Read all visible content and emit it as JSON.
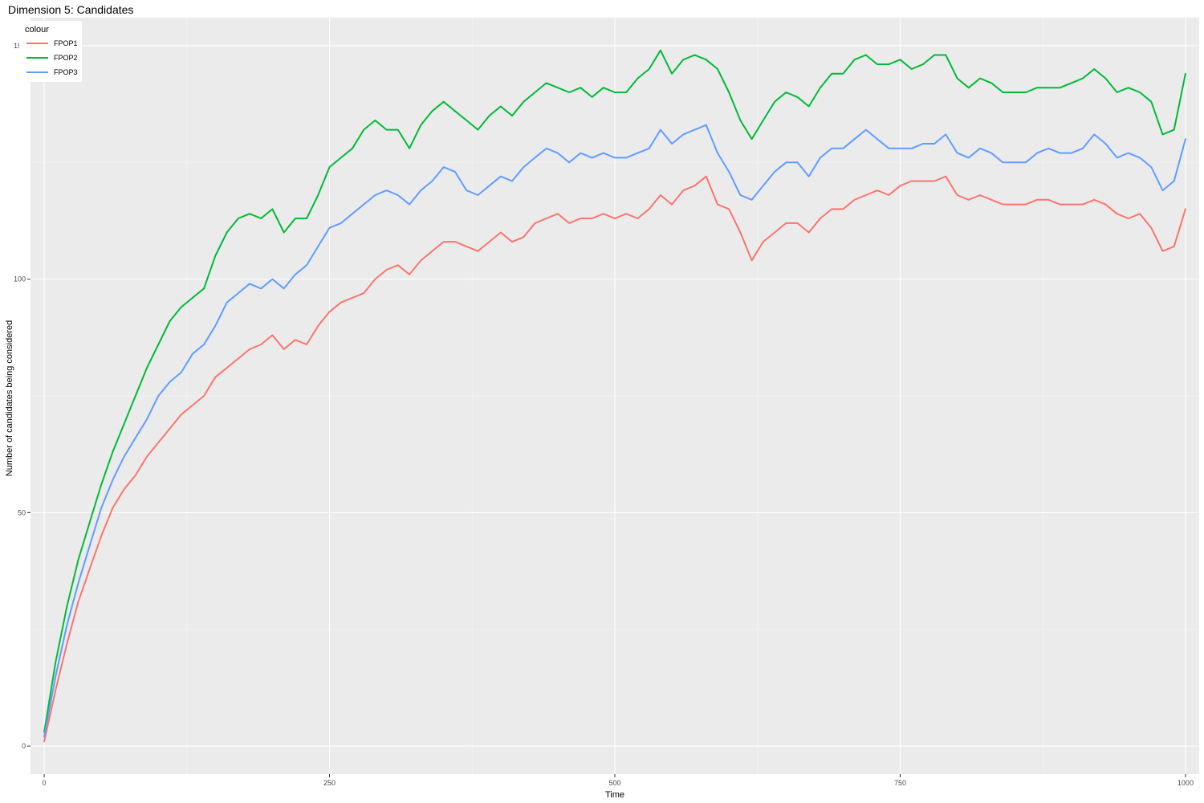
{
  "chart_data": {
    "type": "line",
    "title": "Dimension 5: Candidates",
    "xlabel": "Time",
    "ylabel": "Number of candidates being considered",
    "xlim": [
      -12,
      1012
    ],
    "ylim": [
      -6,
      156
    ],
    "x_ticks": [
      0,
      250,
      500,
      750,
      1000
    ],
    "x_tick_labels": [
      "0",
      "250",
      "500",
      "750",
      "1000"
    ],
    "y_ticks": [
      0,
      50,
      100,
      150
    ],
    "y_tick_labels": [
      "0",
      "50",
      "100",
      "150"
    ],
    "grid": true,
    "legend": {
      "title": "colour",
      "position": "top-left"
    },
    "x": [
      0,
      10,
      20,
      30,
      40,
      50,
      60,
      70,
      80,
      90,
      100,
      110,
      120,
      130,
      140,
      150,
      160,
      170,
      180,
      190,
      200,
      210,
      220,
      230,
      240,
      250,
      260,
      270,
      280,
      290,
      300,
      310,
      320,
      330,
      340,
      350,
      360,
      370,
      380,
      390,
      400,
      410,
      420,
      430,
      440,
      450,
      460,
      470,
      480,
      490,
      500,
      510,
      520,
      530,
      540,
      550,
      560,
      570,
      580,
      590,
      600,
      610,
      620,
      630,
      640,
      650,
      660,
      670,
      680,
      690,
      700,
      710,
      720,
      730,
      740,
      750,
      760,
      770,
      780,
      790,
      800,
      810,
      820,
      830,
      840,
      850,
      860,
      870,
      880,
      890,
      900,
      910,
      920,
      930,
      940,
      950,
      960,
      970,
      980,
      990,
      1000
    ],
    "series": [
      {
        "name": "FPOP1",
        "color": "#F8766D",
        "values": [
          1,
          12,
          22,
          31,
          38,
          45,
          51,
          55,
          58,
          62,
          65,
          68,
          71,
          73,
          75,
          79,
          81,
          83,
          85,
          86,
          88,
          85,
          87,
          86,
          90,
          93,
          95,
          96,
          97,
          100,
          102,
          103,
          101,
          104,
          106,
          108,
          108,
          107,
          106,
          108,
          110,
          108,
          109,
          112,
          113,
          114,
          112,
          113,
          113,
          114,
          113,
          114,
          113,
          115,
          118,
          116,
          119,
          120,
          122,
          116,
          115,
          110,
          104,
          108,
          110,
          112,
          112,
          110,
          113,
          115,
          115,
          117,
          118,
          119,
          118,
          120,
          121,
          121,
          121,
          122,
          118,
          117,
          118,
          117,
          116,
          116,
          116,
          117,
          117,
          116,
          116,
          116,
          117,
          116,
          114,
          113,
          114,
          111,
          106,
          107,
          115
        ]
      },
      {
        "name": "FPOP2",
        "color": "#00BA38",
        "values": [
          3,
          18,
          30,
          40,
          48,
          56,
          63,
          69,
          75,
          81,
          86,
          91,
          94,
          96,
          98,
          105,
          110,
          113,
          114,
          113,
          115,
          110,
          113,
          113,
          118,
          124,
          126,
          128,
          132,
          134,
          132,
          132,
          128,
          133,
          136,
          138,
          136,
          134,
          132,
          135,
          137,
          135,
          138,
          140,
          142,
          141,
          140,
          141,
          139,
          141,
          140,
          140,
          143,
          145,
          149,
          144,
          147,
          148,
          147,
          145,
          140,
          134,
          130,
          134,
          138,
          140,
          139,
          137,
          141,
          144,
          144,
          147,
          148,
          146,
          146,
          147,
          145,
          146,
          148,
          148,
          143,
          141,
          143,
          142,
          140,
          140,
          140,
          141,
          141,
          141,
          142,
          143,
          145,
          143,
          140,
          141,
          140,
          138,
          131,
          132,
          144
        ]
      },
      {
        "name": "FPOP3",
        "color": "#619CFF",
        "values": [
          2,
          15,
          26,
          35,
          43,
          51,
          57,
          62,
          66,
          70,
          75,
          78,
          80,
          84,
          86,
          90,
          95,
          97,
          99,
          98,
          100,
          98,
          101,
          103,
          107,
          111,
          112,
          114,
          116,
          118,
          119,
          118,
          116,
          119,
          121,
          124,
          123,
          119,
          118,
          120,
          122,
          121,
          124,
          126,
          128,
          127,
          125,
          127,
          126,
          127,
          126,
          126,
          127,
          128,
          132,
          129,
          131,
          132,
          133,
          127,
          123,
          118,
          117,
          120,
          123,
          125,
          125,
          122,
          126,
          128,
          128,
          130,
          132,
          130,
          128,
          128,
          128,
          129,
          129,
          131,
          127,
          126,
          128,
          127,
          125,
          125,
          125,
          127,
          128,
          127,
          127,
          128,
          131,
          129,
          126,
          127,
          126,
          124,
          119,
          121,
          130
        ]
      }
    ]
  }
}
